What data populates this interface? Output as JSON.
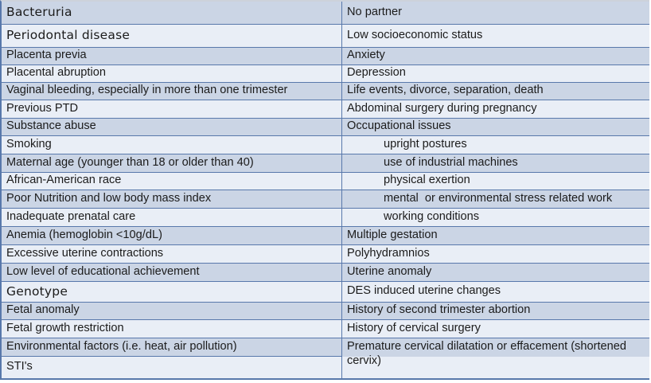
{
  "colors": {
    "band_dark": "#cbd5e5",
    "band_light": "#e9eef6",
    "border_blue": "#5878ab",
    "text": "#1b1b1b",
    "background": "#ffffff"
  },
  "table": {
    "left": [
      "Bacteruria",
      "Periodontal disease",
      "Placenta previa",
      "Placental abruption",
      "Vaginal bleeding, especially in more than one trimester",
      "Previous PTD",
      "Substance abuse",
      "Smoking",
      "Maternal age (younger than 18 or older than 40)",
      "African-American race",
      "Poor Nutrition and low body mass index",
      "Inadequate prenatal care",
      "Anemia (hemoglobin <10g/dL)",
      "Excessive uterine contractions",
      "Low level of educational achievement",
      "Genotype",
      "Fetal anomaly",
      "Fetal growth restriction",
      "Environmental factors (i.e. heat, air pollution)",
      "STI's"
    ],
    "right": [
      "No partner",
      "Low socioeconomic status",
      "Anxiety",
      "Depression",
      "Life events, divorce, separation, death",
      "Abdominal surgery during pregnancy",
      "Occupational issues",
      "upright postures",
      "use of industrial machines",
      "physical exertion",
      "mental  or environmental stress related work",
      "working conditions",
      "Multiple gestation",
      "Polyhydramnios",
      "Uterine anomaly",
      "DES induced uterine changes",
      "History of second trimester abortion",
      "History of cervical surgery",
      "Premature cervical dilatation or effacement (shortened cervix)"
    ]
  },
  "chart_data": {
    "type": "table",
    "title": "",
    "columns": [
      "left",
      "right"
    ],
    "notes": "Two-column banded table of risk factors; rows 8-12 of right column indented under Occupational issues; last right cell spans two rows"
  }
}
